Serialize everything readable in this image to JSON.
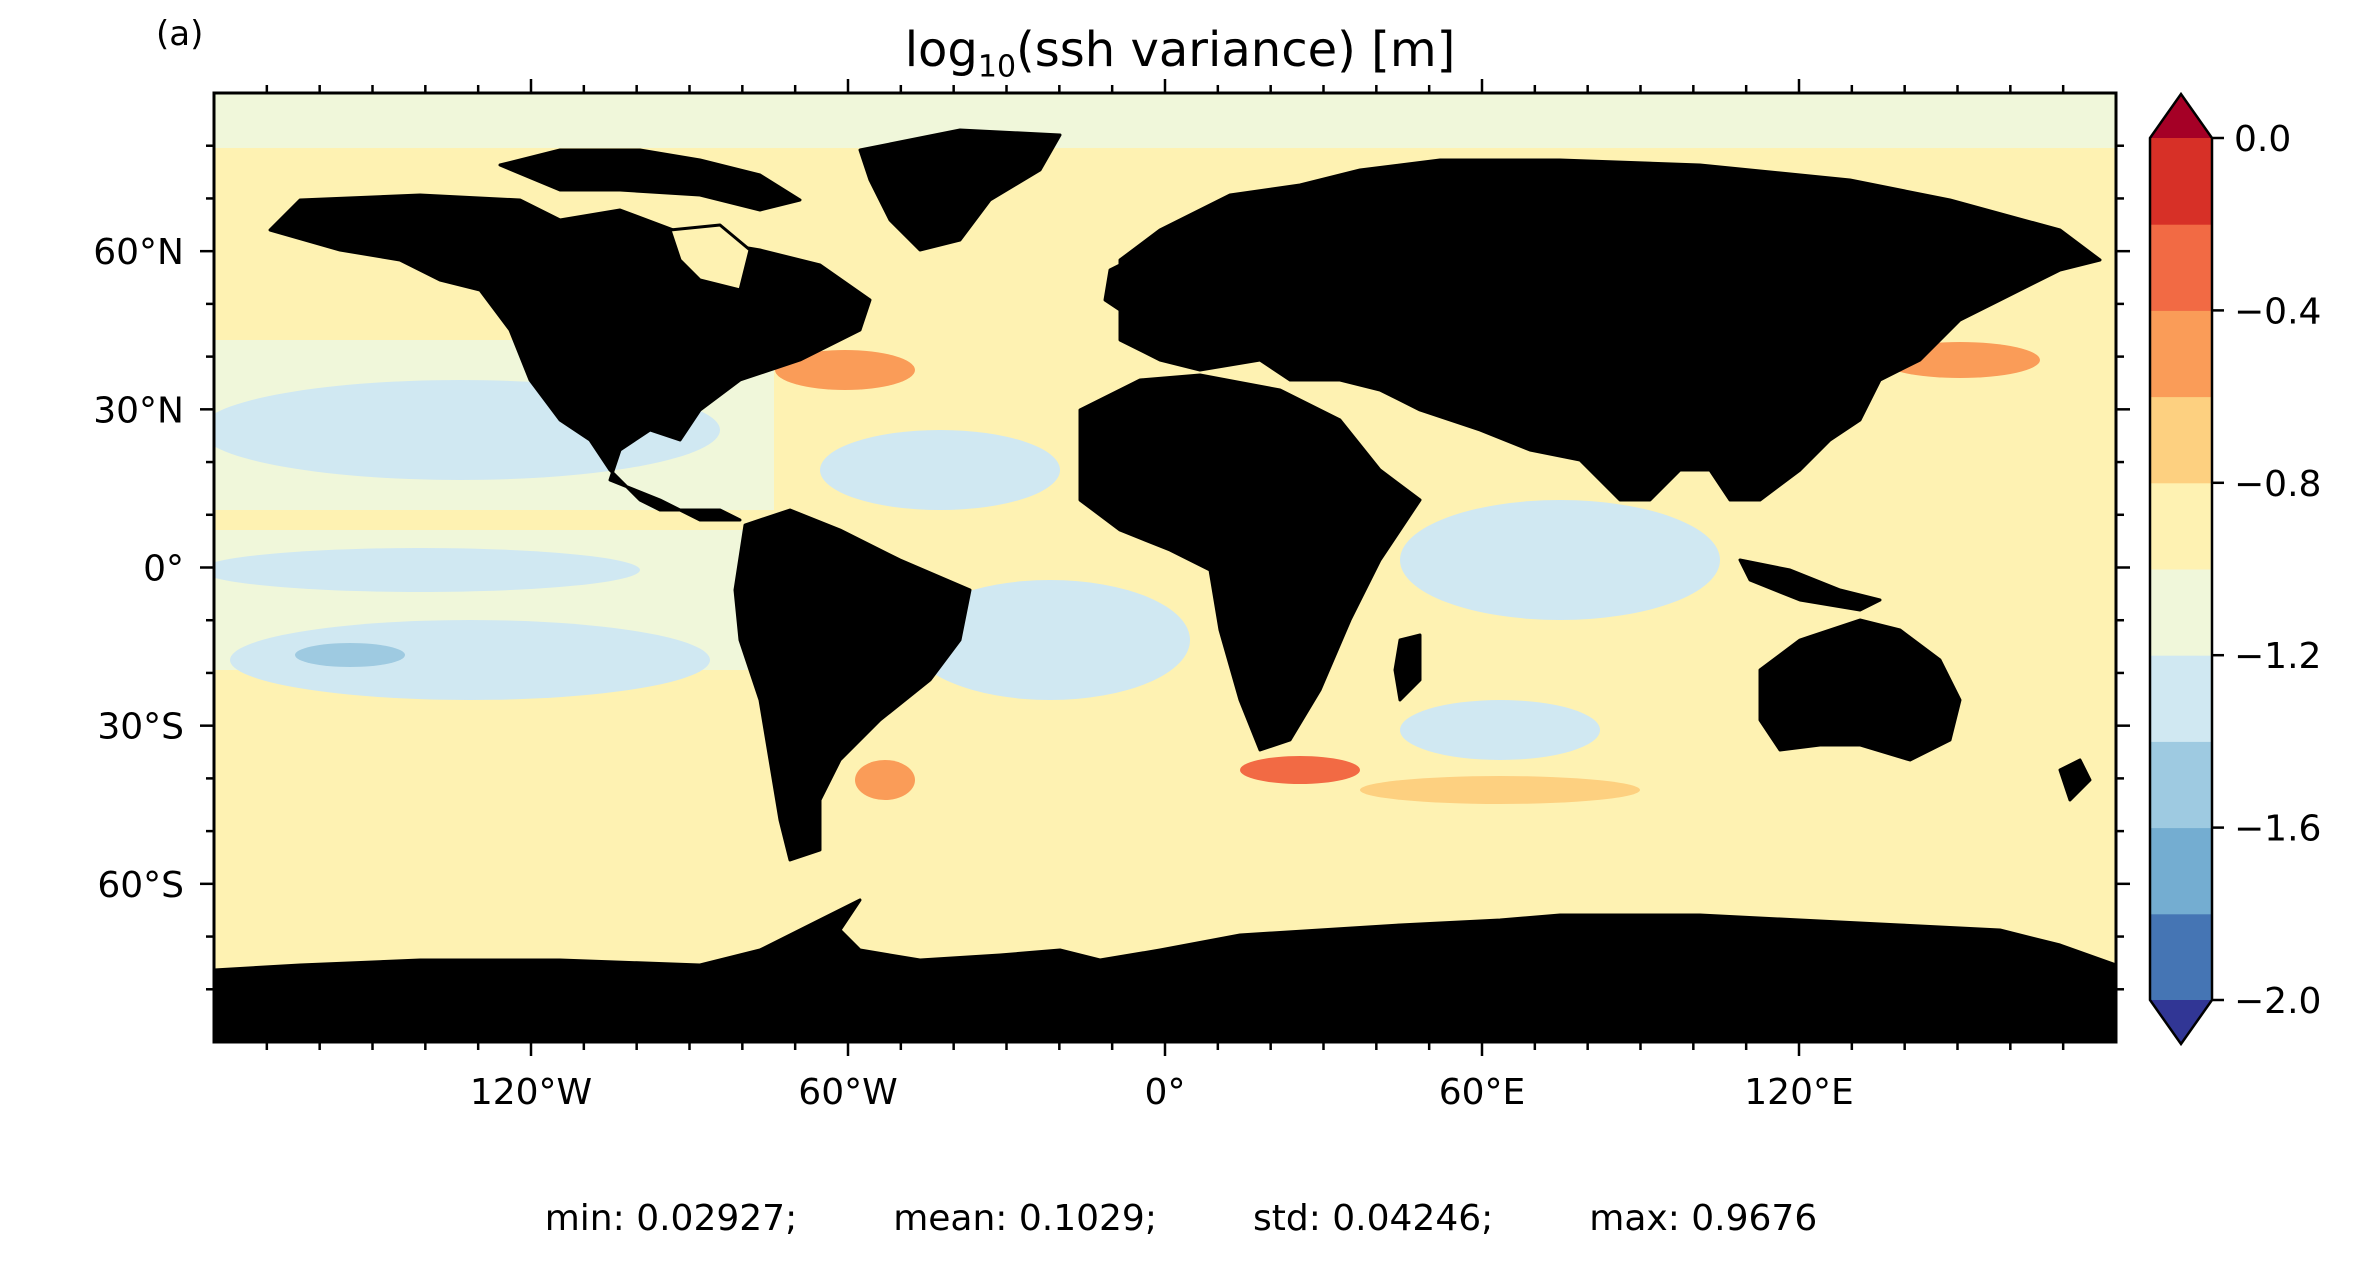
{
  "panel_label": "(a)",
  "title": {
    "prefix": "log",
    "subscript": "10",
    "suffix": "(ssh variance) [m]"
  },
  "map": {
    "projection": "PlateCarree",
    "lon_range": [
      -180,
      180
    ],
    "lat_range": [
      -90,
      90
    ],
    "lon_ticks": [
      {
        "value": -120,
        "label": "120°W"
      },
      {
        "value": -60,
        "label": "60°W"
      },
      {
        "value": 0,
        "label": "0°"
      },
      {
        "value": 60,
        "label": "60°E"
      },
      {
        "value": 120,
        "label": "120°E"
      }
    ],
    "lat_ticks": [
      {
        "value": 60,
        "label": "60°N"
      },
      {
        "value": 30,
        "label": "30°N"
      },
      {
        "value": 0,
        "label": "0°"
      },
      {
        "value": -30,
        "label": "30°S"
      },
      {
        "value": -60,
        "label": "60°S"
      }
    ],
    "land_color": "#b3b3b3",
    "coast_color": "#000000"
  },
  "colorbar": {
    "colormap": "RdYlBu_r",
    "range": [
      -2.0,
      0.0
    ],
    "extend": "both",
    "levels": [
      -2.0,
      -1.8,
      -1.6,
      -1.4,
      -1.2,
      -1.0,
      -0.8,
      -0.6,
      -0.4,
      -0.2,
      0.0
    ],
    "colors": [
      "#4575b4",
      "#74add1",
      "#9ecae1",
      "#d0e8f2",
      "#f0f7da",
      "#fef2b2",
      "#fdd080",
      "#fa9c58",
      "#f26a44",
      "#d73027"
    ],
    "under_color": "#313695",
    "over_color": "#a50026",
    "tick_values": [
      0.0,
      -0.4,
      -0.8,
      -1.2,
      -1.6,
      -2.0
    ],
    "tick_labels": [
      "0.0",
      "−0.4",
      "−0.8",
      "−1.2",
      "−1.6",
      "−2.0"
    ]
  },
  "stats": {
    "min": "min: 0.02927;",
    "mean": "mean: 0.1029;",
    "std": "std: 0.04246;",
    "max": "max: 0.9676"
  }
}
